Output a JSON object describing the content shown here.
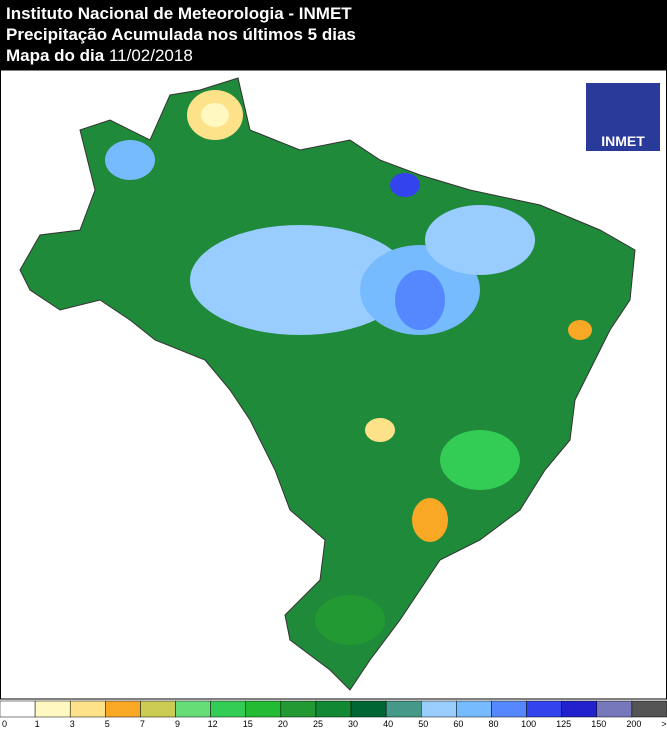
{
  "header": {
    "line1": "Instituto Nacional de Meteorologia - INMET",
    "line2": "Precipitação Acumulada nos últimos 5 dias",
    "line3_label": "Mapa do dia",
    "line3_date": "11/02/2018"
  },
  "logo": "INMET",
  "legend": {
    "labels": [
      "0",
      "1",
      "3",
      "5",
      "7",
      "9",
      "12",
      "15",
      "20",
      "25",
      "30",
      "40",
      "50",
      "60",
      "80",
      "100",
      "125",
      "150",
      "200",
      ">"
    ],
    "colors": [
      "#ffffff",
      "#fff8c0",
      "#fde28a",
      "#f9a825",
      "#cccc55",
      "#66dd77",
      "#33cc55",
      "#22bb33",
      "#229933",
      "#118833",
      "#006633",
      "#449988",
      "#99ccff",
      "#77bbff",
      "#5588ff",
      "#3344ee",
      "#2222cc",
      "#7777bb",
      "#555555"
    ]
  }
}
